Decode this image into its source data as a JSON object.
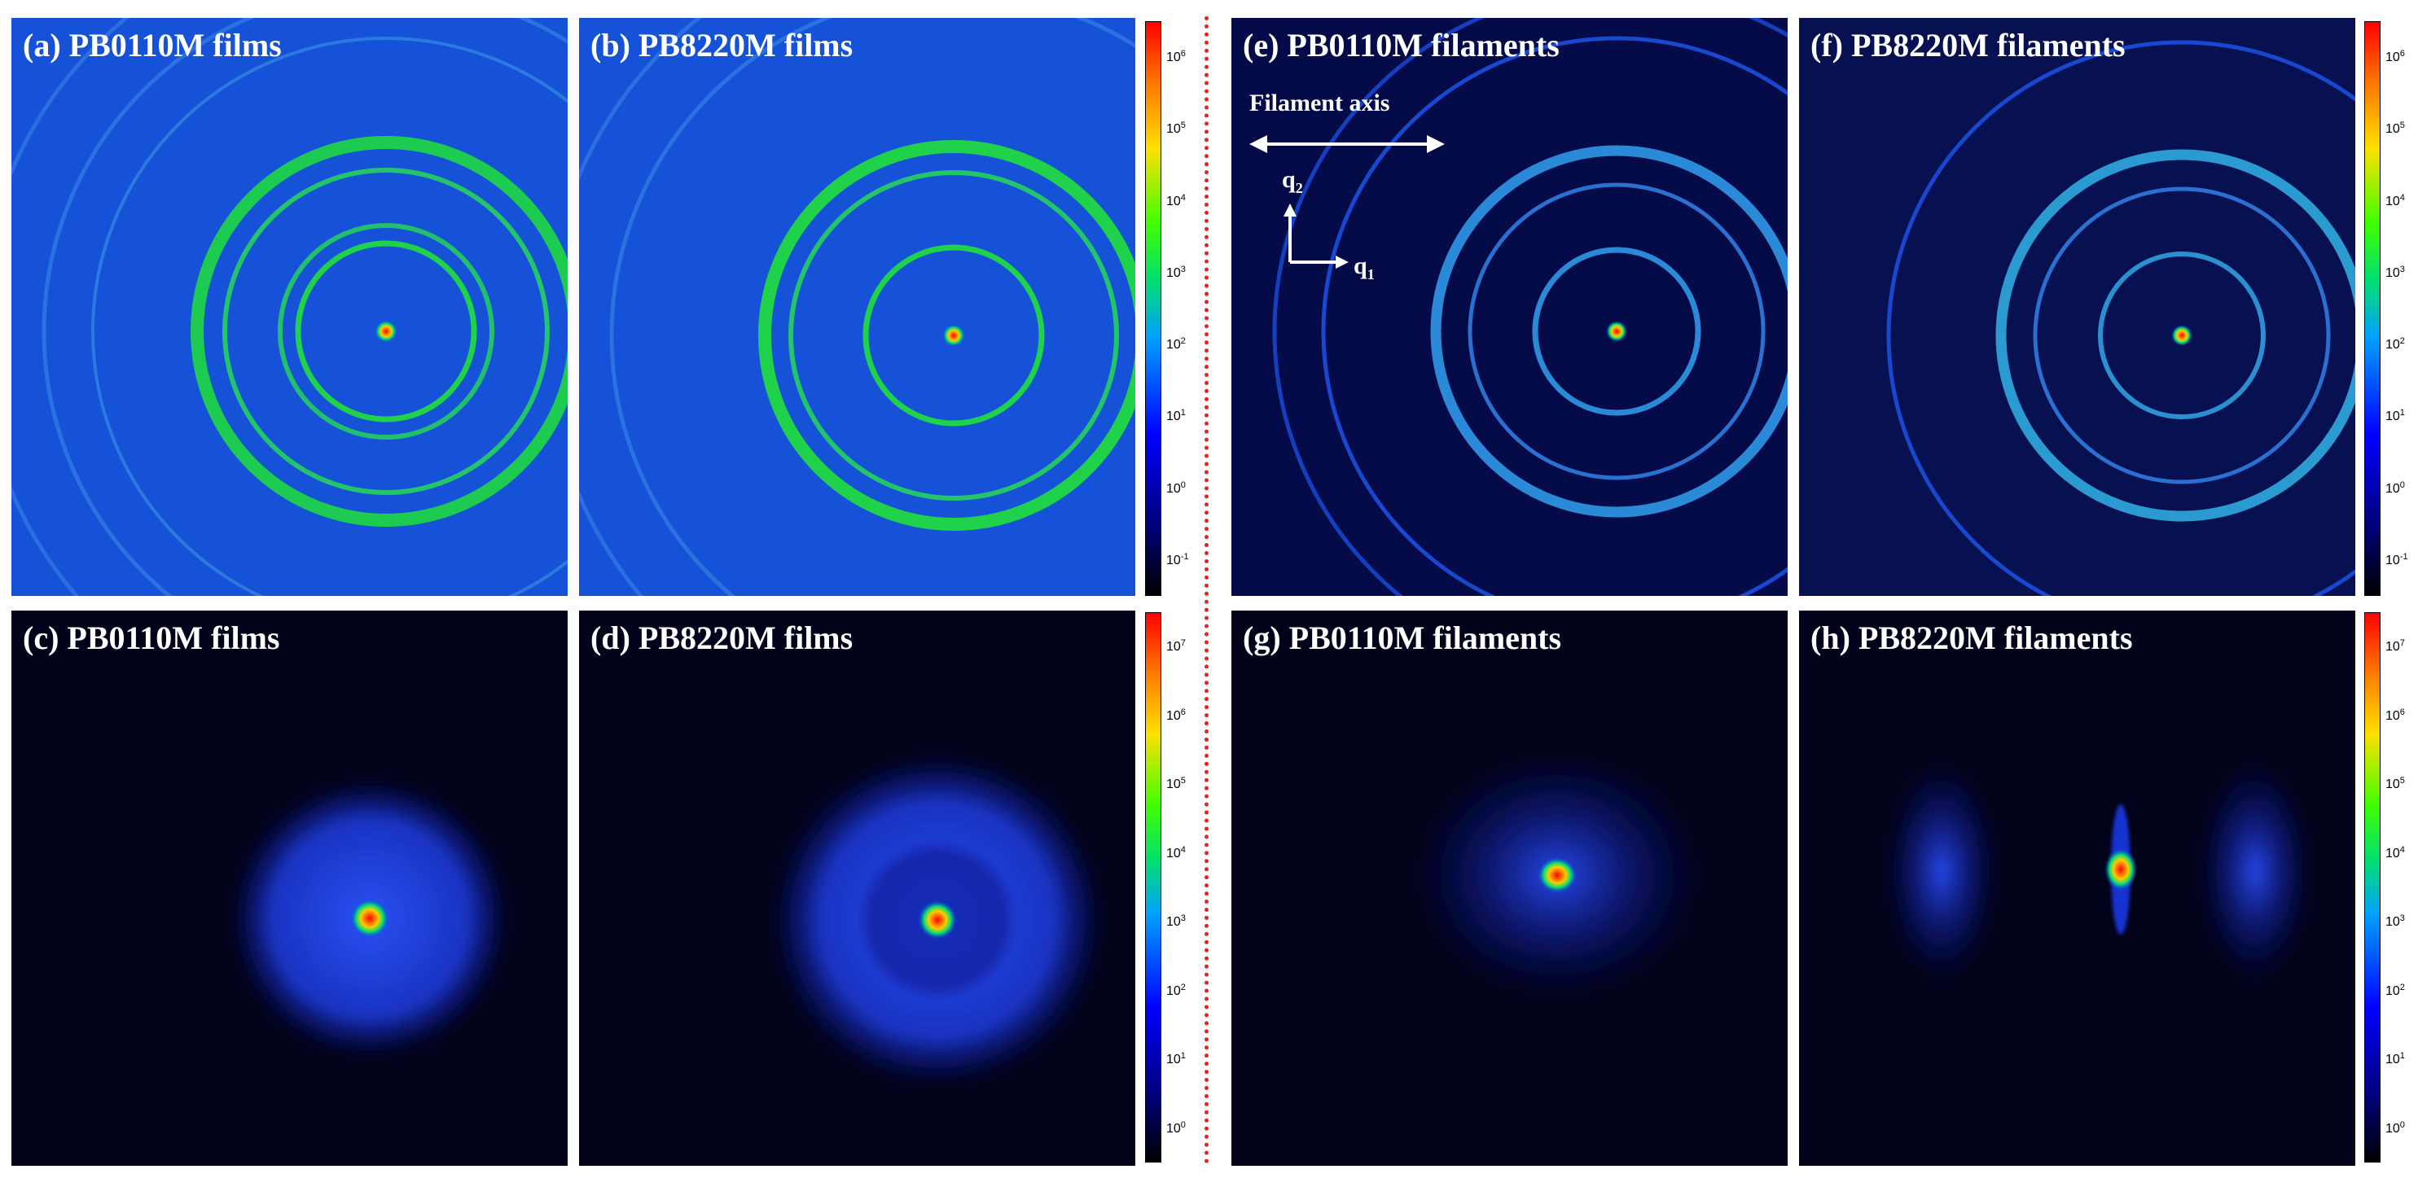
{
  "panels": {
    "a": {
      "label": "(a) PB0110M films"
    },
    "b": {
      "label": "(b) PB8220M films"
    },
    "c": {
      "label": "(c) PB0110M films"
    },
    "d": {
      "label": "(d) PB8220M films"
    },
    "e": {
      "label": "(e) PB0110M filaments"
    },
    "f": {
      "label": "(f) PB8220M filaments"
    },
    "g": {
      "label": "(g) PB0110M filaments"
    },
    "h": {
      "label": "(h) PB8220M filaments"
    }
  },
  "annotations": {
    "filament_axis": "Filament axis",
    "q2": "q",
    "q2_sub": "2",
    "q1": "q",
    "q1_sub": "1"
  },
  "colorbars": {
    "top": {
      "ticks": [
        {
          "base": "10",
          "exp": "6"
        },
        {
          "base": "10",
          "exp": "5"
        },
        {
          "base": "10",
          "exp": "4"
        },
        {
          "base": "10",
          "exp": "3"
        },
        {
          "base": "10",
          "exp": "2"
        },
        {
          "base": "10",
          "exp": "1"
        },
        {
          "base": "10",
          "exp": "0"
        },
        {
          "base": "10",
          "exp": "-1"
        }
      ]
    },
    "bottom": {
      "ticks": [
        {
          "base": "10",
          "exp": "7"
        },
        {
          "base": "10",
          "exp": "6"
        },
        {
          "base": "10",
          "exp": "5"
        },
        {
          "base": "10",
          "exp": "4"
        },
        {
          "base": "10",
          "exp": "3"
        },
        {
          "base": "10",
          "exp": "2"
        },
        {
          "base": "10",
          "exp": "1"
        },
        {
          "base": "10",
          "exp": "0"
        }
      ]
    }
  },
  "colors": {
    "divider": "#e8231f",
    "label": "#ffffff"
  }
}
